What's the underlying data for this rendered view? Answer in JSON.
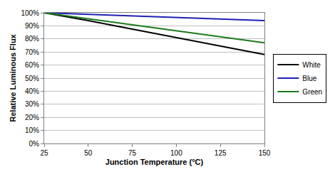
{
  "chart_data": {
    "type": "line",
    "x_label": "Junction Temperature (°C)",
    "y_label": "Relative Luminous Flux",
    "x": [
      25,
      50,
      75,
      100,
      125,
      150
    ],
    "series": [
      {
        "name": "White",
        "color": "#000000",
        "values": [
          100,
          94,
          87.5,
          81,
          74.5,
          68
        ]
      },
      {
        "name": "Blue",
        "color": "#1f1fb4",
        "values": [
          100,
          98.8,
          97.6,
          96.4,
          95.2,
          94
        ]
      },
      {
        "name": "Green",
        "color": "#1a7a1a",
        "values": [
          100,
          95.4,
          90.8,
          86.2,
          81.6,
          77
        ]
      }
    ],
    "xlim": [
      25,
      150
    ],
    "xticks": [
      25,
      50,
      75,
      100,
      125,
      150
    ],
    "ylim": [
      0,
      100
    ],
    "yticks": [
      {
        "value": 0,
        "label": "0%"
      },
      {
        "value": 10,
        "label": "10%"
      },
      {
        "value": 20,
        "label": "20%"
      },
      {
        "value": 30,
        "label": "30%"
      },
      {
        "value": 40,
        "label": "40%"
      },
      {
        "value": 50,
        "label": "50%"
      },
      {
        "value": 60,
        "label": "60%"
      },
      {
        "value": 70,
        "label": "70%"
      },
      {
        "value": 80,
        "label": "80%"
      },
      {
        "value": 90,
        "label": "90%"
      },
      {
        "value": 100,
        "label": "100%"
      }
    ],
    "grid": true,
    "legend": "right"
  }
}
